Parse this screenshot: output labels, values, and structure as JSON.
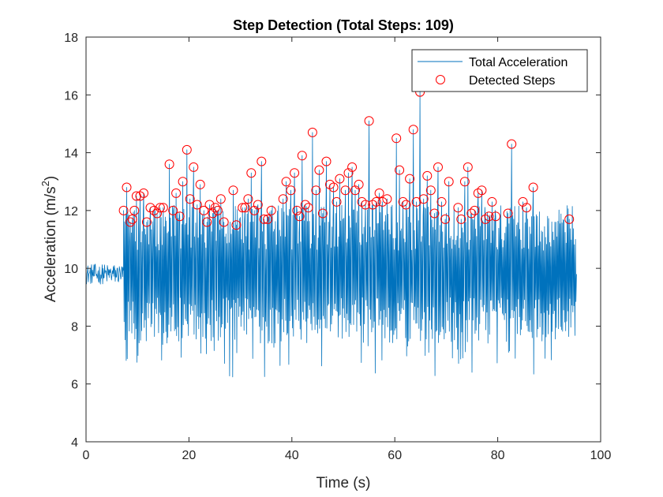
{
  "chart_data": {
    "type": "line",
    "title": "Step Detection (Total Steps: 109)",
    "xlabel": "Time (s)",
    "ylabel_main": "Acceleration (m/s",
    "ylabel_sup": "2",
    "ylabel_close": ")",
    "xlim": [
      0,
      100
    ],
    "ylim": [
      4,
      18
    ],
    "xticks": [
      0,
      20,
      40,
      60,
      80,
      100
    ],
    "yticks": [
      4,
      6,
      8,
      10,
      12,
      14,
      16,
      18
    ],
    "grid": false,
    "legend_position": "top-right",
    "colors": {
      "line": "#0072BD",
      "markers": "#FF0000",
      "axes": "#262626"
    },
    "series": [
      {
        "name": "Total Acceleration",
        "kind": "line",
        "signal": {
          "t_start": 0,
          "t_end": 95.3,
          "quiet_until": 7.3,
          "baseline": 9.8
        }
      },
      {
        "name": "Detected Steps",
        "kind": "scatter",
        "x": [
          7.3,
          7.9,
          8.6,
          9.0,
          9.4,
          9.8,
          10.5,
          11.2,
          11.8,
          12.5,
          13.2,
          13.8,
          14.4,
          15.0,
          16.2,
          16.9,
          17.5,
          18.2,
          18.8,
          19.6,
          20.2,
          20.9,
          21.6,
          22.2,
          22.9,
          23.5,
          24.0,
          24.6,
          25.1,
          25.6,
          26.2,
          26.8,
          28.6,
          29.2,
          30.4,
          30.9,
          31.5,
          32.1,
          32.7,
          33.4,
          34.1,
          34.6,
          35.3,
          36.0,
          38.3,
          38.9,
          39.8,
          40.5,
          41.0,
          41.5,
          42.0,
          42.6,
          43.2,
          44.0,
          44.7,
          45.3,
          46.0,
          46.7,
          47.4,
          48.1,
          48.7,
          49.3,
          50.4,
          51.0,
          51.7,
          52.3,
          53.0,
          53.6,
          54.3,
          55.0,
          55.7,
          56.4,
          57.0,
          57.6,
          58.5,
          60.3,
          60.9,
          61.6,
          62.2,
          62.9,
          63.6,
          64.2,
          64.9,
          65.6,
          66.3,
          67.0,
          67.7,
          68.4,
          69.1,
          69.8,
          70.5,
          72.3,
          72.9,
          73.6,
          74.2,
          74.9,
          75.5,
          76.2,
          76.9,
          77.6,
          78.3,
          78.9,
          79.6,
          82.0,
          82.7,
          84.9,
          85.6,
          86.9,
          93.9
        ],
        "y": [
          12.0,
          12.8,
          11.6,
          11.7,
          12.0,
          12.5,
          12.5,
          12.6,
          11.6,
          12.1,
          12.0,
          11.9,
          12.1,
          12.1,
          13.6,
          12.0,
          12.6,
          11.8,
          13.0,
          14.1,
          12.4,
          13.5,
          12.2,
          12.9,
          12.0,
          11.6,
          12.2,
          11.9,
          12.1,
          12.0,
          12.4,
          11.6,
          12.7,
          11.5,
          12.1,
          12.1,
          12.4,
          13.3,
          12.0,
          12.2,
          13.7,
          11.7,
          11.7,
          12.0,
          12.4,
          13.0,
          12.7,
          13.3,
          12.0,
          11.8,
          13.9,
          12.2,
          12.1,
          14.7,
          12.7,
          13.4,
          11.9,
          13.7,
          12.9,
          12.8,
          12.3,
          13.1,
          12.7,
          13.3,
          13.5,
          12.7,
          12.9,
          12.3,
          12.2,
          15.1,
          12.2,
          12.3,
          12.6,
          12.3,
          12.4,
          14.5,
          13.4,
          12.3,
          12.2,
          13.1,
          14.8,
          12.3,
          16.1,
          12.4,
          13.2,
          12.7,
          11.9,
          13.5,
          12.3,
          11.7,
          13.0,
          12.1,
          11.7,
          13.0,
          13.5,
          11.9,
          12.0,
          12.6,
          12.7,
          11.7,
          11.8,
          12.3,
          11.8,
          11.9,
          14.3,
          12.3,
          12.1,
          12.8,
          11.7
        ]
      }
    ]
  }
}
